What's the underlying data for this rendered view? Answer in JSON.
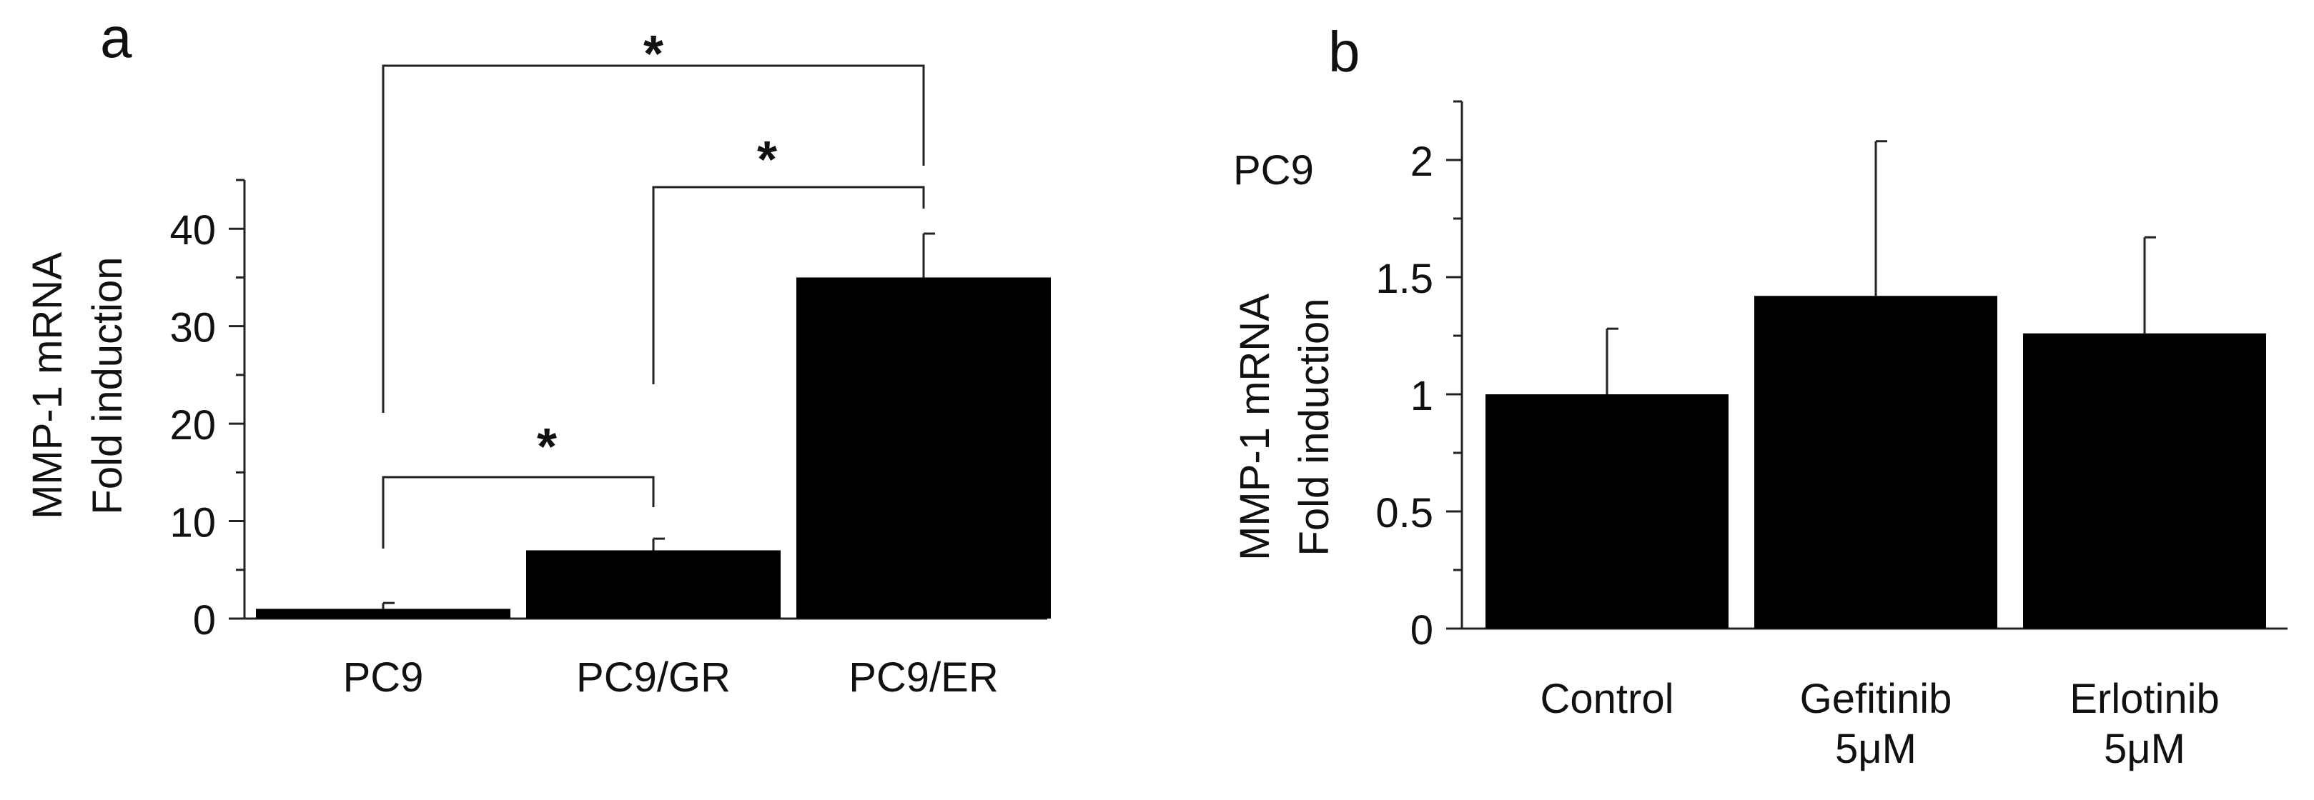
{
  "colors": {
    "bar": "#000000",
    "axis": "#222222",
    "text": "#111111",
    "background": "#ffffff"
  },
  "chart_data": [
    {
      "type": "bar",
      "panel_label": "a",
      "categories": [
        "PC9",
        "PC9/GR",
        "PC9/ER"
      ],
      "values": [
        1,
        7,
        35
      ],
      "errors": [
        0.6,
        1.2,
        4.5
      ],
      "ylabel_lines": [
        "MMP-1 mRNA",
        "Fold induction"
      ],
      "ylim": [
        0,
        45
      ],
      "yticks": [
        0,
        10,
        20,
        30,
        40
      ],
      "ytick_labels": [
        "0",
        "10",
        "20",
        "30",
        "40"
      ],
      "significance": [
        {
          "from": "PC9",
          "to": "PC9/ER",
          "label": "*"
        },
        {
          "from": "PC9/GR",
          "to": "PC9/ER",
          "label": "*"
        },
        {
          "from": "PC9",
          "to": "PC9/GR",
          "label": "*"
        }
      ],
      "grid": false,
      "legend": "none"
    },
    {
      "type": "bar",
      "panel_label": "b",
      "annotation": "PC9",
      "categories": [
        [
          "Control"
        ],
        [
          "Gefitinib",
          "5μM"
        ],
        [
          "Erlotinib",
          "5μM"
        ]
      ],
      "values": [
        1.0,
        1.42,
        1.26
      ],
      "errors": [
        0.28,
        0.66,
        0.41
      ],
      "ylabel_lines": [
        "MMP-1 mRNA",
        "Fold induction"
      ],
      "ylim": [
        0,
        2.25
      ],
      "yticks": [
        0,
        0.5,
        1,
        1.5,
        2
      ],
      "ytick_labels": [
        "0",
        "0.5",
        "1",
        "1.5",
        "2"
      ],
      "grid": false,
      "legend": "none"
    }
  ]
}
